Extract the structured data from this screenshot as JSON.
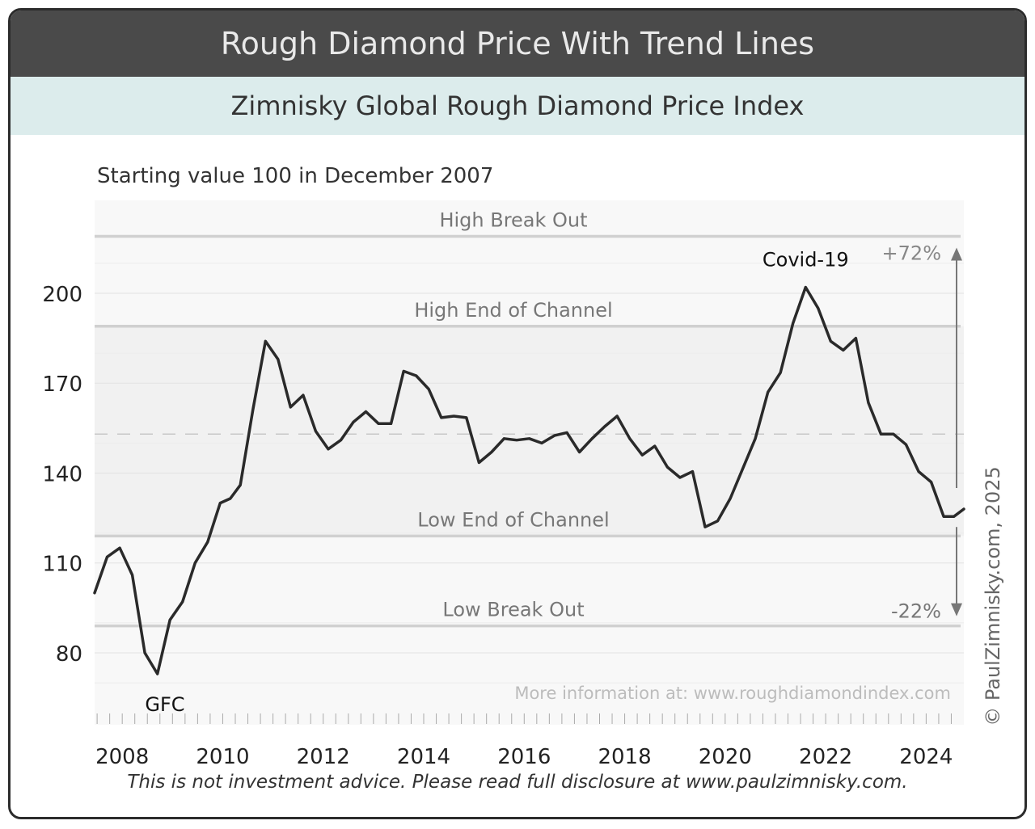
{
  "header": {
    "title": "Rough Diamond Price With Trend Lines",
    "subtitle": "Zimnisky Global Rough Diamond Price Index"
  },
  "footer": {
    "disclaimer": "This is not investment advice. Please read full disclosure at www.paulzimnisky.com."
  },
  "credit": "© PaulZimnisky.com, 2025",
  "chart_data": {
    "type": "line",
    "note": "Starting value 100 in December 2007",
    "more_info": "More information at: www.roughdiamondindex.com",
    "xlim": [
      2007.45,
      2024.75
    ],
    "ylim": [
      56,
      231
    ],
    "yticks": [
      80,
      110,
      140,
      170,
      200
    ],
    "xticks": [
      2008,
      2010,
      2012,
      2014,
      2016,
      2018,
      2020,
      2022,
      2024
    ],
    "grid": true,
    "reference_lines": [
      {
        "label": "High Break Out",
        "y": 219
      },
      {
        "label": "High End of Channel",
        "y": 189
      },
      {
        "label": "Low End of Channel",
        "y": 119
      },
      {
        "label": "Low Break Out",
        "y": 89
      }
    ],
    "median_line": 153,
    "annotations": [
      {
        "text": "GFC",
        "x": 2008.85,
        "y": 73
      },
      {
        "text": "Covid-19",
        "x": 2021.6,
        "y": 201
      },
      {
        "text": "+72%",
        "arrow": "up"
      },
      {
        "text": "-22%",
        "arrow": "down"
      }
    ],
    "series": [
      {
        "x": [
          2007.45,
          2007.7,
          2007.95,
          2008.2,
          2008.45,
          2008.7,
          2008.95,
          2009.2,
          2009.45,
          2009.7,
          2009.95,
          2010.15,
          2010.35,
          2010.6,
          2010.85,
          2011.1,
          2011.35,
          2011.6,
          2011.85,
          2012.1,
          2012.35,
          2012.6,
          2012.85,
          2013.1,
          2013.35,
          2013.6,
          2013.85,
          2014.1,
          2014.35,
          2014.6,
          2014.85,
          2015.1,
          2015.35,
          2015.6,
          2015.85,
          2016.1,
          2016.35,
          2016.6,
          2016.85,
          2017.1,
          2017.35,
          2017.6,
          2017.85,
          2018.1,
          2018.35,
          2018.6,
          2018.85,
          2019.1,
          2019.35,
          2019.6,
          2019.85,
          2020.1,
          2020.35,
          2020.6,
          2020.85,
          2021.1,
          2021.35,
          2021.6,
          2021.85,
          2022.1,
          2022.35,
          2022.6,
          2022.85,
          2023.1,
          2023.35,
          2023.6,
          2023.85,
          2024.1,
          2024.35,
          2024.55,
          2024.75
        ],
        "values": [
          100,
          112,
          115,
          106,
          80,
          73,
          91,
          97,
          110,
          117,
          130,
          131.5,
          136,
          161,
          184,
          178,
          162,
          166,
          154,
          148,
          151,
          157,
          160.5,
          156.5,
          156.5,
          174,
          172.5,
          168,
          158.5,
          159,
          158.5,
          143.5,
          147,
          151.5,
          151,
          151.5,
          150,
          152.5,
          153.5,
          147,
          151.5,
          155.5,
          159,
          151.5,
          146,
          149,
          142,
          138.5,
          140.5,
          122,
          124,
          131.5,
          141.5,
          151.5,
          167,
          173.5,
          190,
          202,
          195,
          184,
          181,
          185,
          163.5,
          153,
          153,
          149.5,
          140.5,
          137,
          125.5,
          125.5,
          128
        ]
      }
    ]
  }
}
